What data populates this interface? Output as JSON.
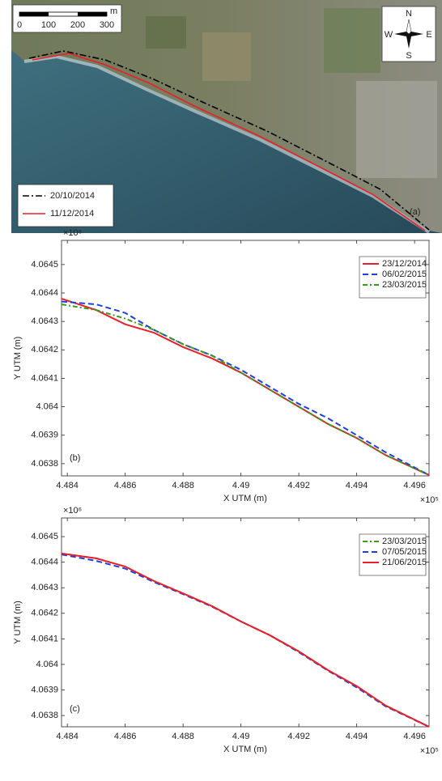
{
  "chart_data": [
    {
      "type": "map",
      "panel_label": "(a)",
      "scale_bar": {
        "unit": "m",
        "ticks": [
          0,
          100,
          200,
          300
        ]
      },
      "compass": {
        "north": "N",
        "south": "S",
        "west": "W",
        "east": "E"
      },
      "legend": "lower left",
      "series": [
        {
          "name": "20/10/2014",
          "color": "#000000",
          "dash": "8 3 2 3"
        },
        {
          "name": "11/12/2014",
          "color": "#e8202a",
          "dash": "none"
        }
      ]
    },
    {
      "type": "line",
      "panel_label": "(b)",
      "xlabel": "X UTM (m)",
      "ylabel": "Y UTM (m)",
      "x_multiplier": "×10⁵",
      "y_multiplier": "×10⁶",
      "legend": "upper right",
      "grid": false,
      "xlim": [
        4.4838,
        4.4965
      ],
      "ylim": [
        4.063757,
        4.064585
      ],
      "xticks": [
        4.484,
        4.486,
        4.488,
        4.49,
        4.492,
        4.494,
        4.496
      ],
      "yticks": [
        4.0638,
        4.0639,
        4.064,
        4.0641,
        4.0642,
        4.0643,
        4.0644,
        4.0645
      ],
      "x": [
        4.4838,
        4.485,
        4.486,
        4.487,
        4.488,
        4.489,
        4.49,
        4.491,
        4.492,
        4.493,
        4.494,
        4.495,
        4.4965
      ],
      "series": [
        {
          "name": "23/12/2014",
          "color": "#e8202a",
          "dash": "none",
          "values": [
            4.06438,
            4.06434,
            4.06429,
            4.06426,
            4.06421,
            4.06417,
            4.06412,
            4.06406,
            4.064,
            4.06394,
            4.06389,
            4.06383,
            4.06376
          ]
        },
        {
          "name": "06/02/2015",
          "color": "#1f3fe0",
          "dash": "7 4",
          "values": [
            4.06437,
            4.06436,
            4.06433,
            4.06427,
            4.06422,
            4.06418,
            4.06413,
            4.06407,
            4.06401,
            4.06396,
            4.0639,
            4.06384,
            4.06376
          ]
        },
        {
          "name": "23/03/2015",
          "color": "#3a9a1e",
          "dash": "6 3 2 3",
          "values": [
            4.06436,
            4.06434,
            4.06431,
            4.06427,
            4.06422,
            4.06418,
            4.06412,
            4.06406,
            4.064,
            4.06394,
            4.06389,
            4.06383,
            4.06376
          ]
        }
      ]
    },
    {
      "type": "line",
      "panel_label": "(c)",
      "xlabel": "X UTM (m)",
      "ylabel": "Y UTM (m)",
      "x_multiplier": "×10⁵",
      "y_multiplier": "×10⁶",
      "legend": "upper right",
      "grid": false,
      "xlim": [
        4.4838,
        4.4965
      ],
      "ylim": [
        4.063756,
        4.064573
      ],
      "xticks": [
        4.484,
        4.486,
        4.488,
        4.49,
        4.492,
        4.494,
        4.496
      ],
      "yticks": [
        4.0638,
        4.0639,
        4.064,
        4.0641,
        4.0642,
        4.0643,
        4.0644,
        4.0645
      ],
      "x": [
        4.4838,
        4.485,
        4.486,
        4.487,
        4.488,
        4.489,
        4.49,
        4.491,
        4.492,
        4.493,
        4.494,
        4.495,
        4.4965
      ],
      "series": [
        {
          "name": "23/03/2015",
          "color": "#3a9a1e",
          "dash": "6 3 2 3",
          "values": [
            4.064434,
            4.064415,
            4.064383,
            4.064326,
            4.064278,
            4.064228,
            4.064168,
            4.064114,
            4.064051,
            4.063978,
            4.063915,
            4.063839,
            4.063756
          ]
        },
        {
          "name": "07/05/2015",
          "color": "#1f3fe0",
          "dash": "7 4",
          "values": [
            4.06443,
            4.064405,
            4.064375,
            4.064322,
            4.064275,
            4.064226,
            4.064168,
            4.064114,
            4.064048,
            4.063976,
            4.06391,
            4.063836,
            4.063756
          ]
        },
        {
          "name": "21/06/2015",
          "color": "#e8202a",
          "dash": "none",
          "values": [
            4.064434,
            4.064415,
            4.064383,
            4.064326,
            4.064278,
            4.064228,
            4.064168,
            4.064114,
            4.064051,
            4.063978,
            4.063915,
            4.063839,
            4.063756
          ]
        }
      ]
    }
  ]
}
